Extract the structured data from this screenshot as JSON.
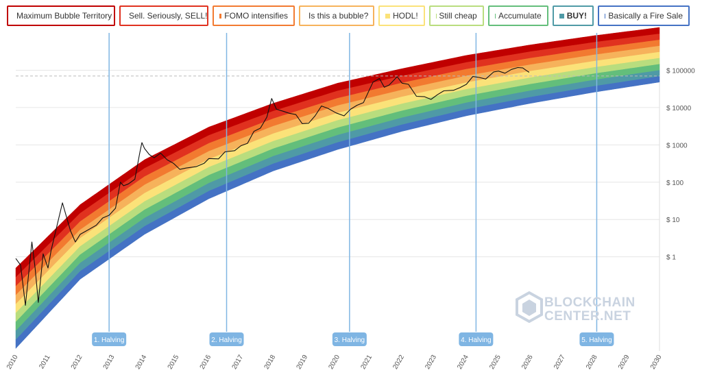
{
  "legend": [
    {
      "label": "Maximum Bubble Territory",
      "color": "#c00000",
      "bold": false
    },
    {
      "label": "Sell. Seriously, SELL!",
      "color": "#e0311f",
      "bold": false
    },
    {
      "label": "FOMO intensifies",
      "color": "#f27a30",
      "bold": false
    },
    {
      "label": "Is this a bubble?",
      "color": "#f6b25b",
      "bold": false
    },
    {
      "label": "HODL!",
      "color": "#fbe279",
      "bold": false
    },
    {
      "label": "Still cheap",
      "color": "#b9dd7e",
      "bold": false
    },
    {
      "label": "Accumulate",
      "color": "#63be7b",
      "bold": false
    },
    {
      "label": "BUY!",
      "color": "#4f9aa6",
      "bold": true
    },
    {
      "label": "Basically a Fire Sale",
      "color": "#4472c4",
      "bold": false
    }
  ],
  "watermark": {
    "line1": "BLOCKCHAIN",
    "line2": "CENTER.NET"
  },
  "chart_data": {
    "type": "line",
    "y_scale": "log",
    "xlim": [
      2010,
      2030
    ],
    "ylim": [
      0.003,
      1000000
    ],
    "x_ticks": [
      "2010",
      "2011",
      "2012",
      "2013",
      "2014",
      "2015",
      "2016",
      "2017",
      "2018",
      "2019",
      "2020",
      "2021",
      "2022",
      "2023",
      "2024",
      "2025",
      "2026",
      "2027",
      "2028",
      "2029",
      "2030"
    ],
    "y_ticks": [
      {
        "value": 1,
        "label": "$ 1"
      },
      {
        "value": 10,
        "label": "$ 10"
      },
      {
        "value": 100,
        "label": "$ 100"
      },
      {
        "value": 1000,
        "label": "$ 1000"
      },
      {
        "value": 10000,
        "label": "$ 10000"
      },
      {
        "value": 100000,
        "label": "$ 100000"
      }
    ],
    "bands": {
      "colors": [
        "#4472c4",
        "#4f9aa6",
        "#63be7b",
        "#b9dd7e",
        "#fbe279",
        "#f6b25b",
        "#f27a30",
        "#e0311f",
        "#c00000"
      ],
      "lower": [
        [
          2010.0,
          0.0035
        ],
        [
          2012,
          0.25
        ],
        [
          2014,
          4
        ],
        [
          2016,
          36
        ],
        [
          2018,
          200
        ],
        [
          2020,
          750
        ],
        [
          2022,
          2300
        ],
        [
          2024,
          6000
        ],
        [
          2026,
          13000
        ],
        [
          2028,
          26000
        ],
        [
          2030,
          48000
        ]
      ],
      "upper": [
        [
          2010.0,
          0.5
        ],
        [
          2012,
          25
        ],
        [
          2014,
          400
        ],
        [
          2016,
          3000
        ],
        [
          2018,
          13000
        ],
        [
          2020,
          45000
        ],
        [
          2022,
          110000
        ],
        [
          2024,
          250000
        ],
        [
          2026,
          480000
        ],
        [
          2028,
          850000
        ],
        [
          2030,
          1400000
        ]
      ]
    },
    "price": [
      [
        2010.0,
        0.9
      ],
      [
        2010.15,
        0.6
      ],
      [
        2010.3,
        0.05
      ],
      [
        2010.5,
        2.5
      ],
      [
        2010.6,
        0.5
      ],
      [
        2010.7,
        0.06
      ],
      [
        2010.85,
        1.2
      ],
      [
        2011.0,
        0.5
      ],
      [
        2011.1,
        1.5
      ],
      [
        2011.3,
        8
      ],
      [
        2011.45,
        28
      ],
      [
        2011.55,
        14
      ],
      [
        2011.7,
        5
      ],
      [
        2011.85,
        2.5
      ],
      [
        2012.0,
        4
      ],
      [
        2012.2,
        5
      ],
      [
        2012.5,
        7
      ],
      [
        2012.7,
        11
      ],
      [
        2012.9,
        13
      ],
      [
        2013.1,
        20
      ],
      [
        2013.25,
        100
      ],
      [
        2013.35,
        80
      ],
      [
        2013.5,
        90
      ],
      [
        2013.7,
        120
      ],
      [
        2013.85,
        600
      ],
      [
        2013.92,
        1150
      ],
      [
        2014.0,
        800
      ],
      [
        2014.15,
        550
      ],
      [
        2014.3,
        450
      ],
      [
        2014.5,
        600
      ],
      [
        2014.7,
        400
      ],
      [
        2014.9,
        320
      ],
      [
        2015.1,
        220
      ],
      [
        2015.3,
        240
      ],
      [
        2015.6,
        260
      ],
      [
        2015.85,
        320
      ],
      [
        2016.0,
        430
      ],
      [
        2016.3,
        420
      ],
      [
        2016.5,
        650
      ],
      [
        2016.8,
        700
      ],
      [
        2017.0,
        950
      ],
      [
        2017.2,
        1100
      ],
      [
        2017.4,
        2300
      ],
      [
        2017.6,
        2800
      ],
      [
        2017.8,
        5500
      ],
      [
        2017.95,
        17500
      ],
      [
        2018.1,
        9000
      ],
      [
        2018.3,
        8000
      ],
      [
        2018.5,
        7000
      ],
      [
        2018.7,
        6500
      ],
      [
        2018.9,
        3700
      ],
      [
        2019.1,
        3800
      ],
      [
        2019.3,
        6000
      ],
      [
        2019.5,
        11000
      ],
      [
        2019.7,
        9500
      ],
      [
        2019.95,
        7200
      ],
      [
        2020.2,
        6000
      ],
      [
        2020.4,
        9000
      ],
      [
        2020.6,
        11500
      ],
      [
        2020.8,
        13500
      ],
      [
        2020.98,
        29000
      ],
      [
        2021.1,
        48000
      ],
      [
        2021.3,
        60000
      ],
      [
        2021.45,
        35000
      ],
      [
        2021.6,
        40000
      ],
      [
        2021.85,
        67000
      ],
      [
        2022.0,
        45000
      ],
      [
        2022.2,
        42000
      ],
      [
        2022.45,
        20000
      ],
      [
        2022.7,
        19500
      ],
      [
        2022.9,
        16500
      ],
      [
        2023.1,
        22000
      ],
      [
        2023.3,
        28000
      ],
      [
        2023.6,
        29000
      ],
      [
        2023.8,
        34000
      ],
      [
        2024.0,
        42000
      ],
      [
        2024.2,
        68000
      ],
      [
        2024.4,
        64000
      ],
      [
        2024.6,
        58000
      ],
      [
        2024.85,
        90000
      ],
      [
        2025.0,
        95000
      ],
      [
        2025.2,
        83000
      ],
      [
        2025.4,
        105000
      ],
      [
        2025.6,
        118000
      ],
      [
        2025.75,
        115000
      ],
      [
        2025.85,
        100000
      ],
      [
        2025.95,
        88000
      ]
    ],
    "reference_line": {
      "value": 70000
    },
    "halvings": [
      {
        "x": 2012.9,
        "label": "1. Halving"
      },
      {
        "x": 2016.55,
        "label": "2. Halving"
      },
      {
        "x": 2020.37,
        "label": "3. Halving"
      },
      {
        "x": 2024.3,
        "label": "4. Halving"
      },
      {
        "x": 2028.05,
        "label": "5. Halving"
      }
    ]
  }
}
